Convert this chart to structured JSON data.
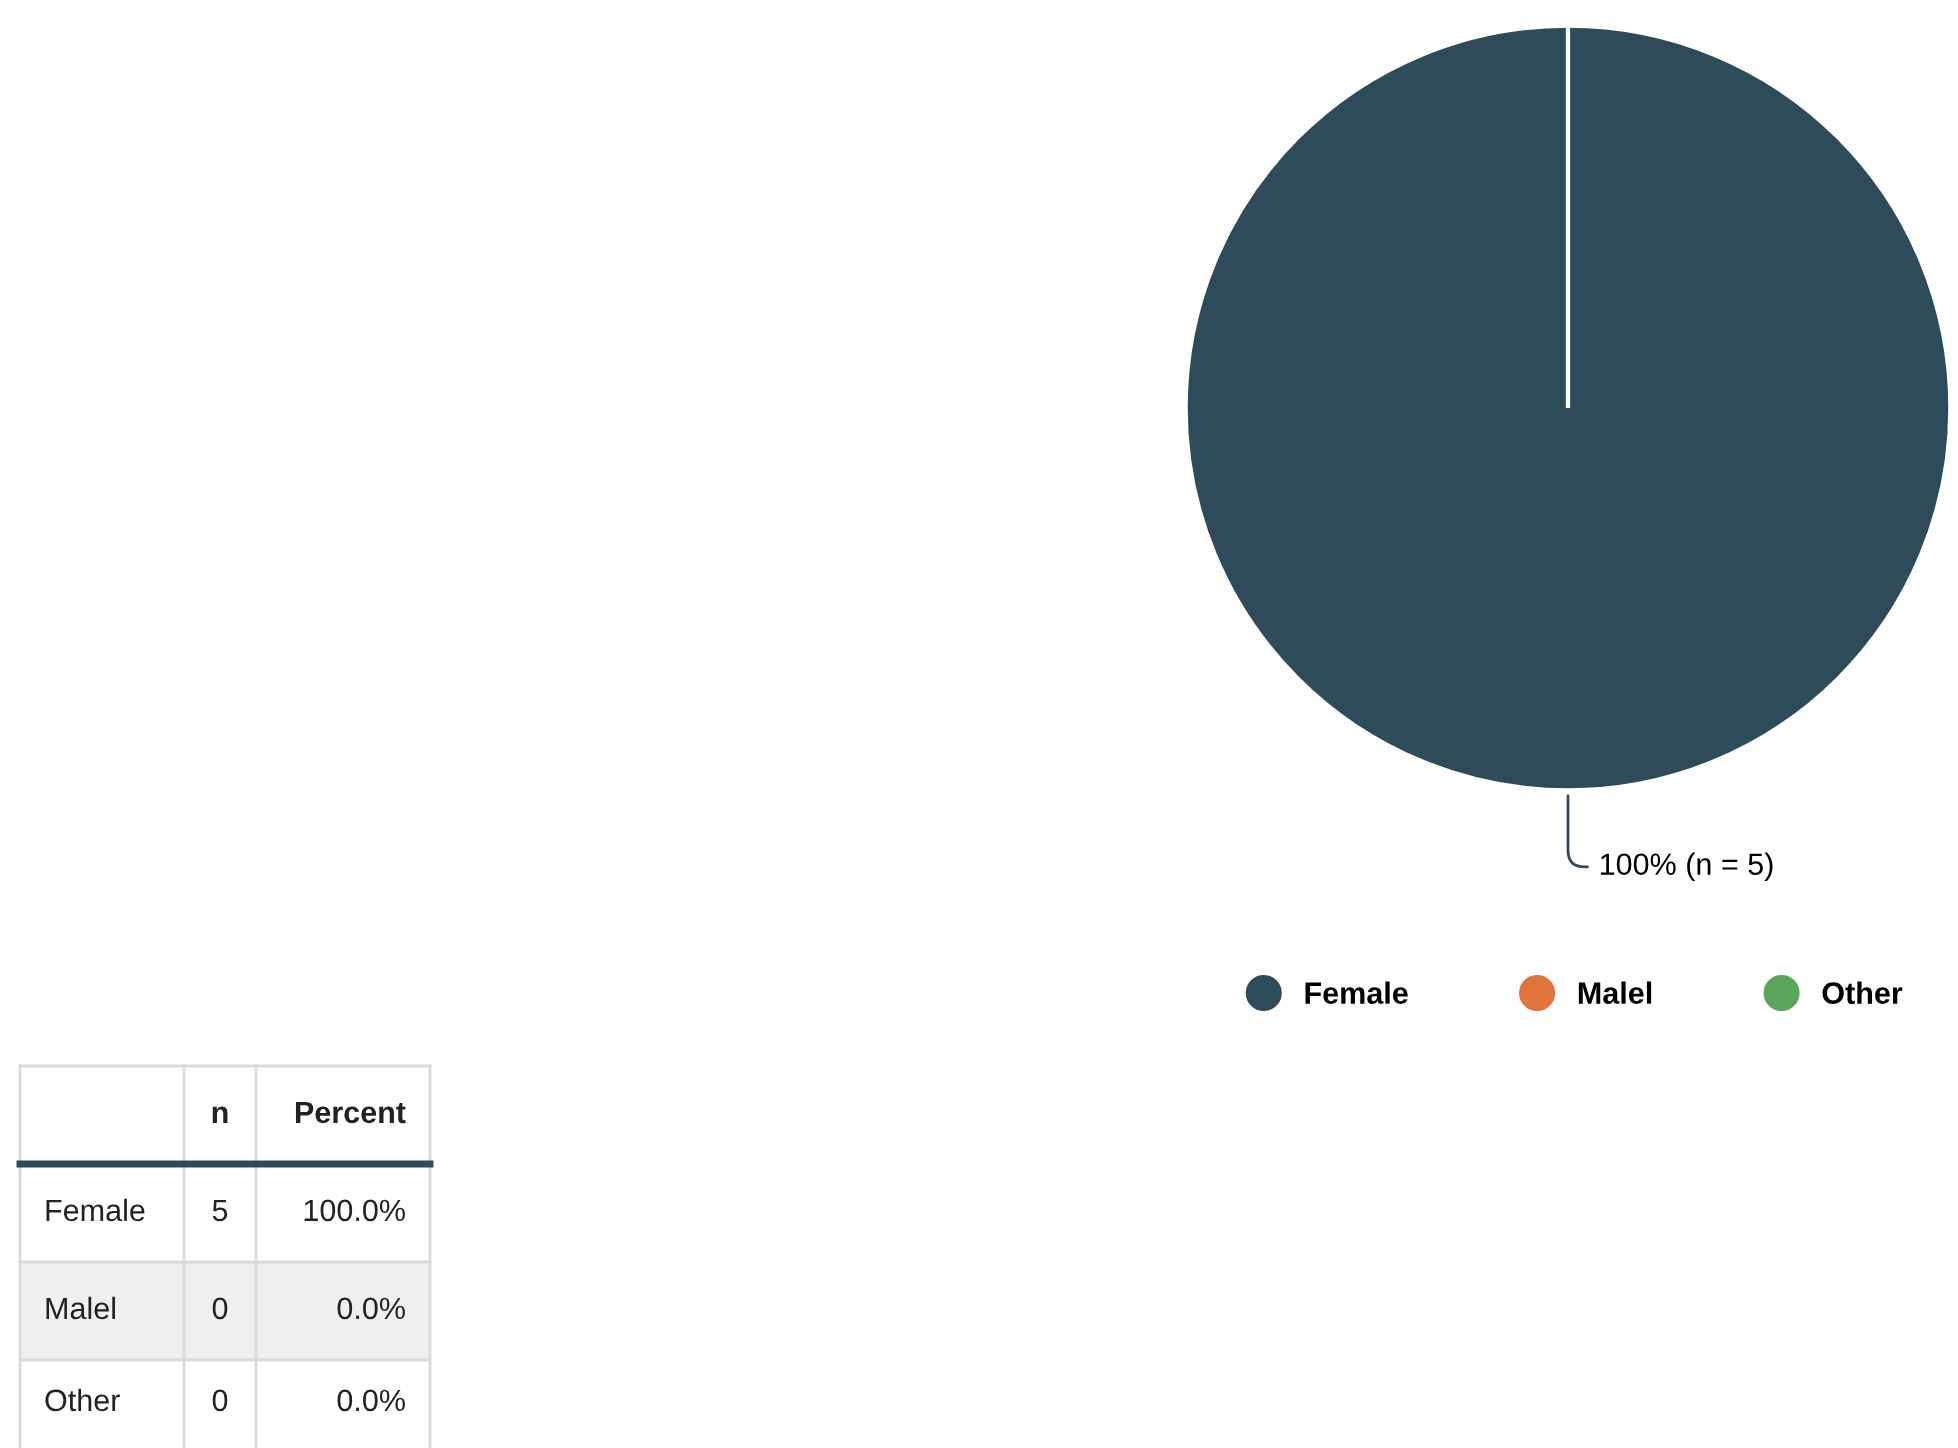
{
  "chart_data": {
    "type": "pie",
    "categories": [
      "Female",
      "Malel",
      "Other"
    ],
    "values": [
      5,
      0,
      0
    ],
    "colors": [
      "#2e4b5a",
      "#e0743a",
      "#5aa65a"
    ],
    "value_labels": [
      "100% (n = 5)",
      null,
      null
    ],
    "data_labels": true,
    "legend": "bottom",
    "annotations": [
      "n",
      "Percent",
      "5",
      "100.0%",
      "0",
      "0.0%",
      "0",
      "0.0%"
    ]
  }
}
